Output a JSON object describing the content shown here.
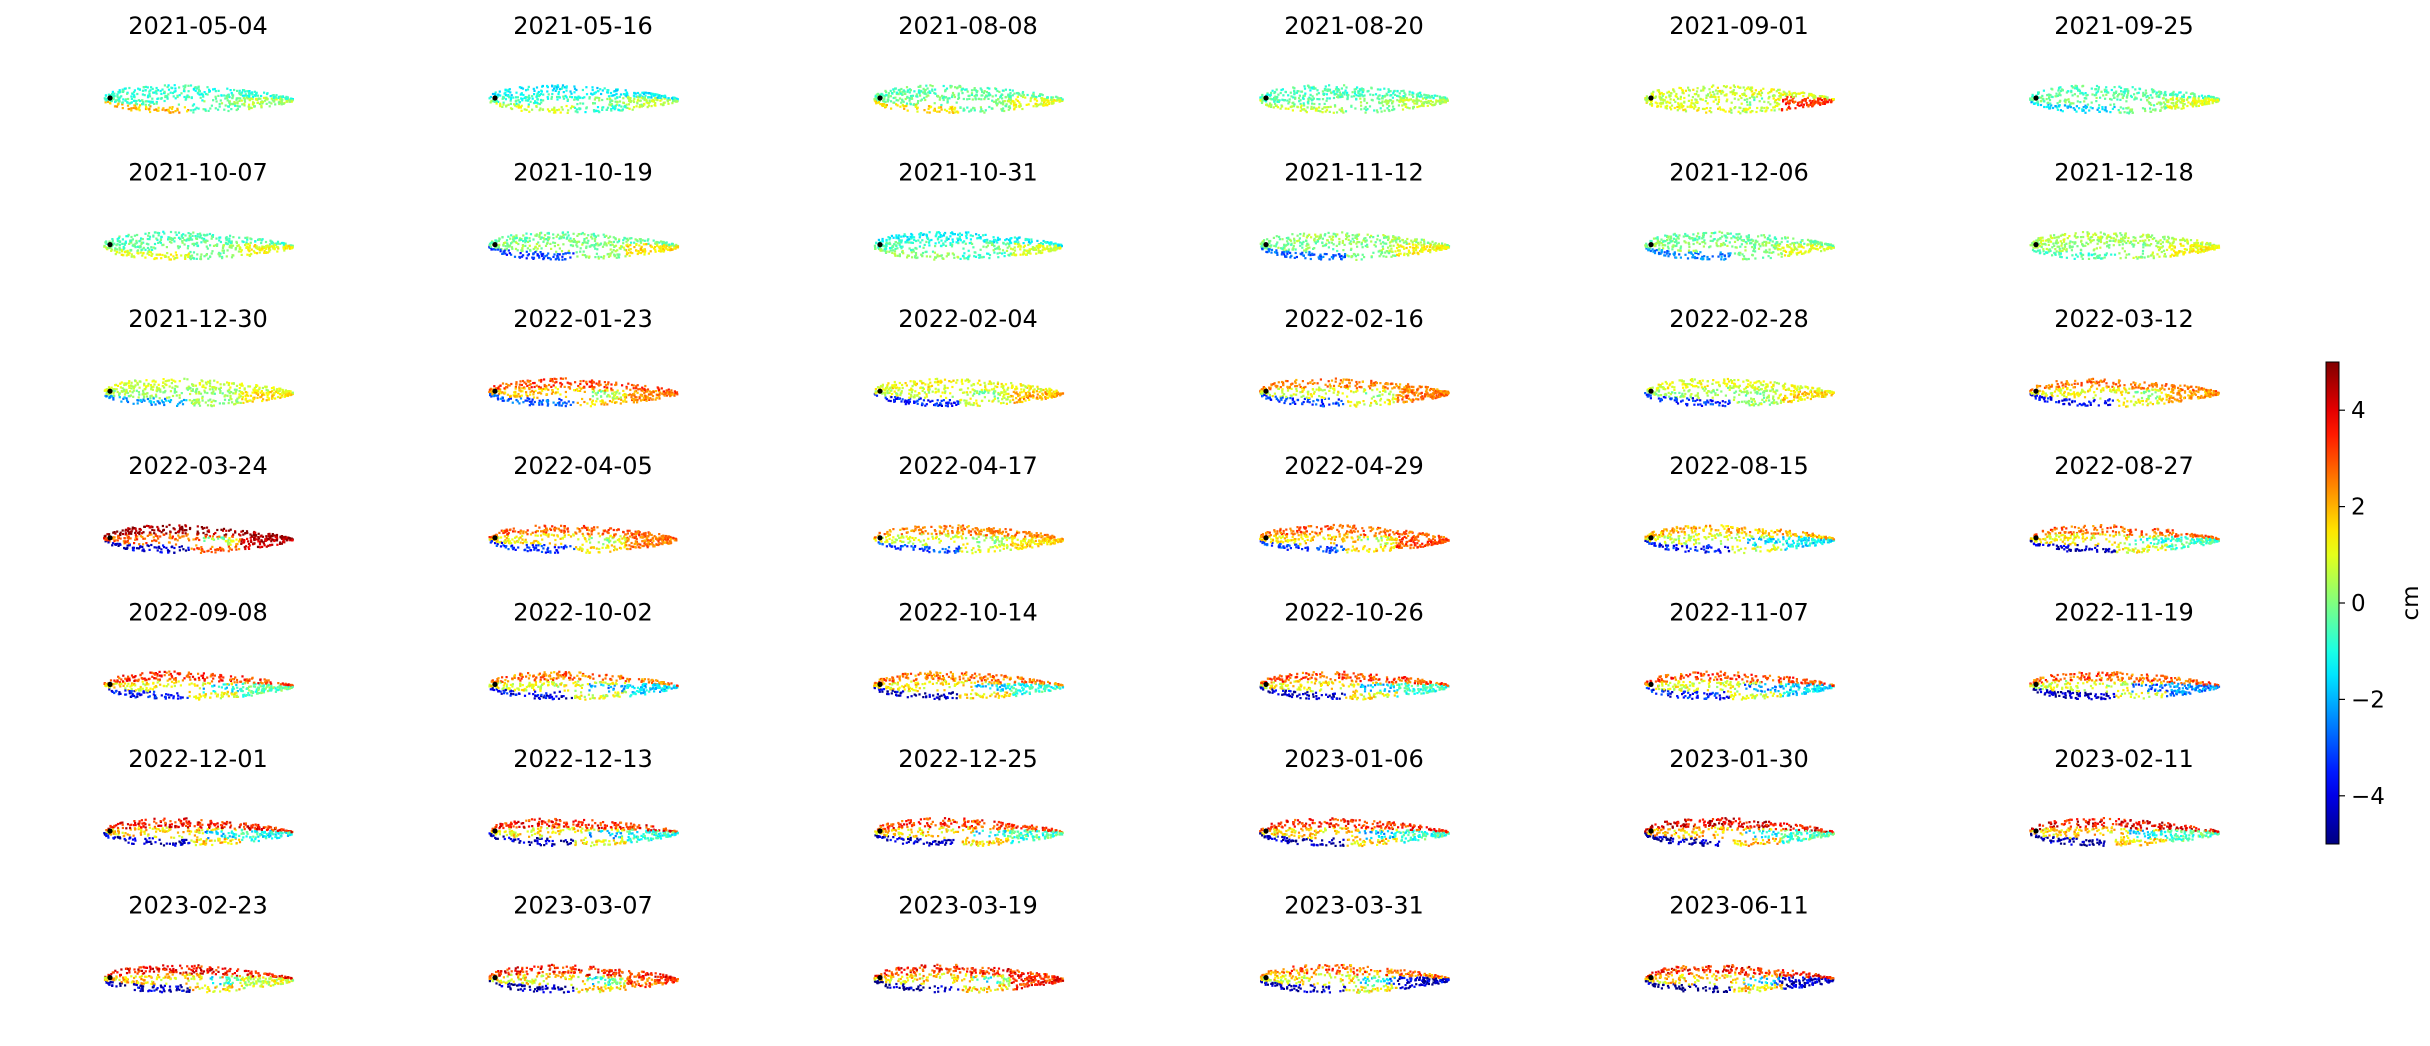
{
  "chart_data": {
    "type": "heatmap",
    "subtype": "small-multiples displacement maps",
    "colormap": "jet",
    "panels": [
      {
        "date": "2021-05-04",
        "pattern": {
          "base": -0.6,
          "north": -0.8,
          "south": 2.0,
          "east": 0.4,
          "spot": 0.0,
          "spread": 0.6
        }
      },
      {
        "date": "2021-05-16",
        "pattern": {
          "base": -0.7,
          "north": -1.3,
          "south": 0.8,
          "east": 0.5,
          "spot": 0.0,
          "spread": 0.6
        }
      },
      {
        "date": "2021-08-08",
        "pattern": {
          "base": -0.2,
          "north": -0.4,
          "south": 1.5,
          "east": 1.0,
          "spot": 0.0,
          "spread": 0.6
        }
      },
      {
        "date": "2021-08-20",
        "pattern": {
          "base": -0.4,
          "north": -0.6,
          "south": 0.6,
          "east": 0.6,
          "spot": 0.0,
          "spread": 0.6
        }
      },
      {
        "date": "2021-09-01",
        "pattern": {
          "base": 0.7,
          "north": 0.9,
          "south": 1.0,
          "east": 3.2,
          "spot": 0.0,
          "spread": 0.7
        }
      },
      {
        "date": "2021-09-25",
        "pattern": {
          "base": -0.2,
          "north": -0.5,
          "south": -1.6,
          "east": 0.9,
          "spot": 0.0,
          "spread": 0.6
        }
      },
      {
        "date": "2021-10-07",
        "pattern": {
          "base": -0.3,
          "north": -0.5,
          "south": 1.0,
          "east": 1.2,
          "spot": 0.0,
          "spread": 0.6
        }
      },
      {
        "date": "2021-10-19",
        "pattern": {
          "base": 0.2,
          "north": -0.2,
          "south": -3.2,
          "east": 1.5,
          "spot": 0.0,
          "spread": 0.6
        }
      },
      {
        "date": "2021-10-31",
        "pattern": {
          "base": -0.6,
          "north": -1.2,
          "south": 0.2,
          "east": 0.8,
          "spot": 0.0,
          "spread": 0.6
        }
      },
      {
        "date": "2021-11-12",
        "pattern": {
          "base": 0.0,
          "north": 0.2,
          "south": -2.8,
          "east": 1.2,
          "spot": 0.0,
          "spread": 0.6
        }
      },
      {
        "date": "2021-12-06",
        "pattern": {
          "base": 0.1,
          "north": -0.2,
          "south": -2.5,
          "east": 1.0,
          "spot": 0.0,
          "spread": 0.6
        }
      },
      {
        "date": "2021-12-18",
        "pattern": {
          "base": 0.3,
          "north": 0.5,
          "south": -0.5,
          "east": 1.2,
          "spot": 0.0,
          "spread": 0.6
        }
      },
      {
        "date": "2021-12-30",
        "pattern": {
          "base": 0.3,
          "north": 0.8,
          "south": -2.2,
          "east": 1.5,
          "spot": 0.0,
          "spread": 0.6
        }
      },
      {
        "date": "2022-01-23",
        "pattern": {
          "base": 1.8,
          "north": 3.0,
          "south": -2.8,
          "east": 2.5,
          "spot": 0.0,
          "spread": 0.7
        }
      },
      {
        "date": "2022-02-04",
        "pattern": {
          "base": 0.8,
          "north": 1.2,
          "south": -3.6,
          "east": 2.0,
          "spot": 0.0,
          "spread": 0.7
        }
      },
      {
        "date": "2022-02-16",
        "pattern": {
          "base": 1.0,
          "north": 2.5,
          "south": -3.2,
          "east": 2.6,
          "spot": 0.0,
          "spread": 0.7
        }
      },
      {
        "date": "2022-02-28",
        "pattern": {
          "base": 0.4,
          "north": 1.0,
          "south": -3.4,
          "east": 1.6,
          "spot": 0.0,
          "spread": 0.7
        }
      },
      {
        "date": "2022-03-12",
        "pattern": {
          "base": 1.2,
          "north": 2.6,
          "south": -3.8,
          "east": 2.2,
          "spot": 0.0,
          "spread": 0.7
        }
      },
      {
        "date": "2022-03-24",
        "pattern": {
          "base": 2.8,
          "north": 4.8,
          "south": -4.2,
          "east": 4.4,
          "spot": 0.0,
          "spread": 0.8
        }
      },
      {
        "date": "2022-04-05",
        "pattern": {
          "base": 1.4,
          "north": 2.8,
          "south": -3.4,
          "east": 2.6,
          "spot": 0.0,
          "spread": 0.7
        }
      },
      {
        "date": "2022-04-17",
        "pattern": {
          "base": 0.9,
          "north": 2.4,
          "south": -3.0,
          "east": 1.6,
          "spot": 0.0,
          "spread": 0.7
        }
      },
      {
        "date": "2022-04-29",
        "pattern": {
          "base": 1.6,
          "north": 2.8,
          "south": -3.0,
          "east": 3.0,
          "spot": 0.0,
          "spread": 0.7
        }
      },
      {
        "date": "2022-08-15",
        "pattern": {
          "base": 0.8,
          "north": 2.0,
          "south": -3.6,
          "east": -1.4,
          "spot": -1.6,
          "spread": 0.8
        }
      },
      {
        "date": "2022-08-27",
        "pattern": {
          "base": 1.2,
          "north": 2.8,
          "south": -4.4,
          "east": -0.6,
          "spot": -1.0,
          "spread": 0.8
        }
      },
      {
        "date": "2022-09-08",
        "pattern": {
          "base": 1.2,
          "north": 3.2,
          "south": -3.8,
          "east": -0.4,
          "spot": -1.6,
          "spread": 0.9
        }
      },
      {
        "date": "2022-10-02",
        "pattern": {
          "base": 1.0,
          "north": 2.6,
          "south": -4.0,
          "east": -1.6,
          "spot": -2.2,
          "spread": 0.9
        }
      },
      {
        "date": "2022-10-14",
        "pattern": {
          "base": 1.4,
          "north": 2.6,
          "south": -4.4,
          "east": -0.8,
          "spot": -1.8,
          "spread": 0.9
        }
      },
      {
        "date": "2022-10-26",
        "pattern": {
          "base": 1.3,
          "north": 3.0,
          "south": -4.2,
          "east": -0.8,
          "spot": -2.0,
          "spread": 0.9
        }
      },
      {
        "date": "2022-11-07",
        "pattern": {
          "base": 1.0,
          "north": 3.0,
          "south": -3.6,
          "east": -1.6,
          "spot": -2.6,
          "spread": 0.9
        }
      },
      {
        "date": "2022-11-19",
        "pattern": {
          "base": 0.8,
          "north": 2.8,
          "south": -4.6,
          "east": -2.4,
          "spot": -3.0,
          "spread": 0.9
        }
      },
      {
        "date": "2022-12-01",
        "pattern": {
          "base": 1.6,
          "north": 3.6,
          "south": -4.4,
          "east": -1.0,
          "spot": -1.8,
          "spread": 1.0
        }
      },
      {
        "date": "2022-12-13",
        "pattern": {
          "base": 1.4,
          "north": 3.4,
          "south": -4.6,
          "east": -0.8,
          "spot": -2.0,
          "spread": 1.0
        }
      },
      {
        "date": "2022-12-25",
        "pattern": {
          "base": 1.6,
          "north": 3.2,
          "south": -4.4,
          "east": -0.6,
          "spot": -1.6,
          "spread": 1.0
        }
      },
      {
        "date": "2023-01-06",
        "pattern": {
          "base": 1.6,
          "north": 3.4,
          "south": -4.6,
          "east": -0.8,
          "spot": -2.0,
          "spread": 1.0
        }
      },
      {
        "date": "2023-01-30",
        "pattern": {
          "base": 1.8,
          "north": 4.0,
          "south": -4.6,
          "east": -0.6,
          "spot": -1.6,
          "spread": 1.0
        }
      },
      {
        "date": "2023-02-11",
        "pattern": {
          "base": 1.6,
          "north": 3.8,
          "south": -4.6,
          "east": -0.4,
          "spot": -1.4,
          "spread": 1.0
        }
      },
      {
        "date": "2023-02-23",
        "pattern": {
          "base": 1.6,
          "north": 3.6,
          "south": -4.4,
          "east": 0.8,
          "spot": -1.0,
          "spread": 1.0
        }
      },
      {
        "date": "2023-03-07",
        "pattern": {
          "base": 1.4,
          "north": 3.4,
          "south": -4.6,
          "east": 3.0,
          "spot": -1.2,
          "spread": 1.1
        }
      },
      {
        "date": "2023-03-19",
        "pattern": {
          "base": 1.6,
          "north": 3.4,
          "south": -4.6,
          "east": 3.4,
          "spot": -1.0,
          "spread": 1.1
        }
      },
      {
        "date": "2023-03-31",
        "pattern": {
          "base": 1.2,
          "north": 2.6,
          "south": -4.6,
          "east": -4.4,
          "spot": -1.2,
          "spread": 1.1
        }
      },
      {
        "date": "2023-06-11",
        "pattern": {
          "base": 1.6,
          "north": 3.4,
          "south": -4.8,
          "east": -4.4,
          "spot": -1.6,
          "spread": 1.1
        }
      }
    ],
    "colorbar": {
      "label": "cm",
      "vmin": -5,
      "vmax": 5,
      "ticks": [
        4,
        2,
        0,
        -2,
        -4
      ],
      "tick_labels": [
        "4",
        "2",
        "0",
        "−2",
        "−4"
      ]
    },
    "grid": false,
    "axes_visible": false
  }
}
